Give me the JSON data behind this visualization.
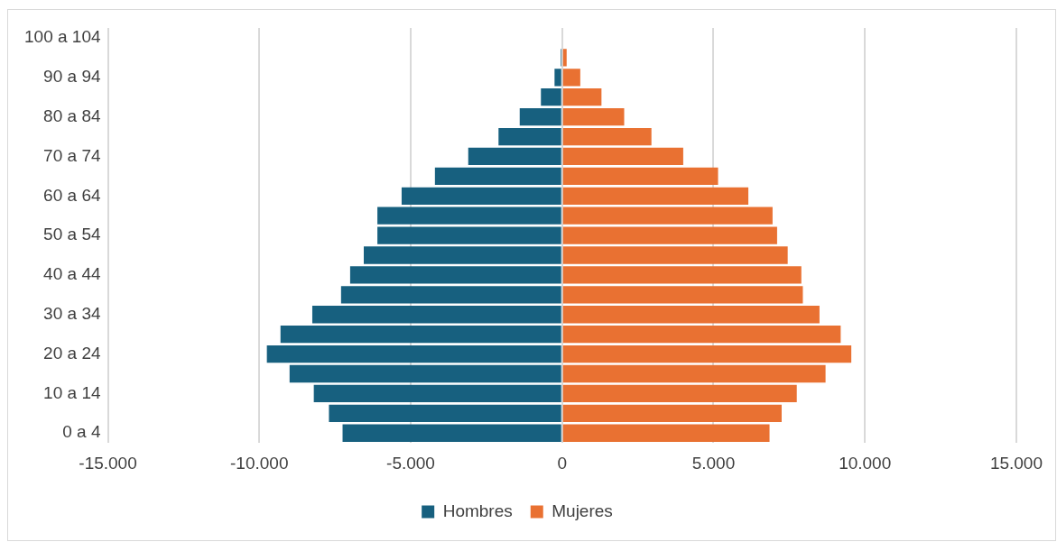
{
  "chart_data": {
    "type": "bar",
    "orientation": "horizontal",
    "stacked": true,
    "categories": [
      "100 a 104",
      null,
      "90 a 94",
      null,
      "80 a 84",
      null,
      "70 a 74",
      null,
      "60 a 64",
      null,
      "50 a 54",
      null,
      "40 a 44",
      null,
      "30 a 34",
      null,
      "20 a 24",
      null,
      "10 a 14",
      null,
      "0 a 4"
    ],
    "series": [
      {
        "name": "Hombres",
        "color": "#17607f",
        "values": [
          0,
          -50,
          -250,
          -700,
          -1400,
          -2100,
          -3100,
          -4200,
          -5300,
          -6100,
          -6100,
          -6550,
          -7000,
          -7300,
          -8250,
          -9300,
          -9750,
          -9000,
          -8200,
          -7700,
          -7250
        ]
      },
      {
        "name": "Mujeres",
        "color": "#e97132",
        "values": [
          0,
          150,
          600,
          1300,
          2050,
          2950,
          4000,
          5150,
          6150,
          6950,
          7100,
          7450,
          7900,
          7950,
          8500,
          9200,
          9550,
          8700,
          7750,
          7250,
          6850
        ]
      }
    ],
    "xlim": [
      -15000,
      15000
    ],
    "xticks": [
      {
        "value": -15000,
        "label": "-15.000"
      },
      {
        "value": -10000,
        "label": "-10.000"
      },
      {
        "value": -5000,
        "label": "-5.000"
      },
      0,
      {
        "value": 5000,
        "label": "5.000"
      },
      {
        "value": 10000,
        "label": "10.000"
      },
      {
        "value": 15000,
        "label": "15.000"
      }
    ],
    "grid": "x",
    "legend": "bottom"
  }
}
